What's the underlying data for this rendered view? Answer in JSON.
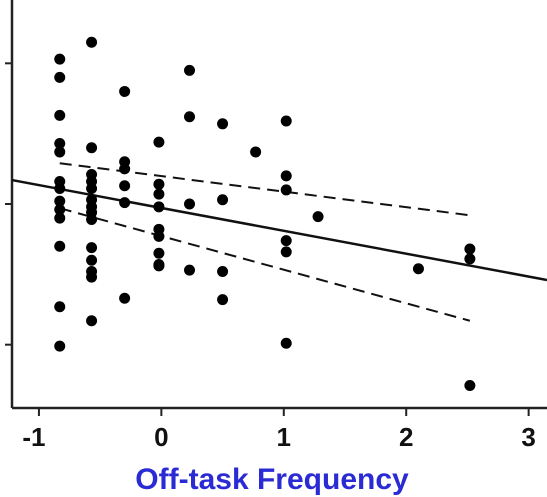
{
  "chart_data": {
    "type": "scatter",
    "xlabel": "Off-task Frequency",
    "xlabel_color": "#2b2bd6",
    "ylabel": "",
    "xlim": [
      -1.22,
      3.15
    ],
    "ylim": [
      -1.45,
      1.45
    ],
    "x_ticks": [
      -1,
      0,
      1,
      2,
      3
    ],
    "x_tick_labels": [
      "-1",
      "0",
      "1",
      "2",
      "3"
    ],
    "y_ticks": [
      -1,
      0,
      1
    ],
    "grid": false,
    "point_color": "#000000",
    "points": [
      {
        "x": -0.83,
        "y": 1.03
      },
      {
        "x": -0.83,
        "y": 0.9
      },
      {
        "x": -0.83,
        "y": 0.63
      },
      {
        "x": -0.83,
        "y": 0.43
      },
      {
        "x": -0.83,
        "y": 0.37
      },
      {
        "x": -0.83,
        "y": 0.16
      },
      {
        "x": -0.83,
        "y": 0.11
      },
      {
        "x": -0.83,
        "y": 0.02
      },
      {
        "x": -0.83,
        "y": -0.04
      },
      {
        "x": -0.83,
        "y": -0.1
      },
      {
        "x": -0.83,
        "y": -0.3
      },
      {
        "x": -0.83,
        "y": -0.73
      },
      {
        "x": -0.83,
        "y": -1.01
      },
      {
        "x": -0.57,
        "y": 1.15
      },
      {
        "x": -0.57,
        "y": 0.4
      },
      {
        "x": -0.57,
        "y": 0.21
      },
      {
        "x": -0.57,
        "y": 0.16
      },
      {
        "x": -0.57,
        "y": 0.11
      },
      {
        "x": -0.57,
        "y": 0.03
      },
      {
        "x": -0.57,
        "y": -0.02
      },
      {
        "x": -0.57,
        "y": -0.06
      },
      {
        "x": -0.57,
        "y": -0.11
      },
      {
        "x": -0.57,
        "y": -0.31
      },
      {
        "x": -0.57,
        "y": -0.4
      },
      {
        "x": -0.57,
        "y": -0.48
      },
      {
        "x": -0.57,
        "y": -0.52
      },
      {
        "x": -0.57,
        "y": -0.83
      },
      {
        "x": -0.3,
        "y": 0.8
      },
      {
        "x": -0.3,
        "y": 0.3
      },
      {
        "x": -0.3,
        "y": 0.25
      },
      {
        "x": -0.3,
        "y": 0.13
      },
      {
        "x": -0.3,
        "y": 0.01
      },
      {
        "x": -0.3,
        "y": -0.67
      },
      {
        "x": -0.02,
        "y": 0.44
      },
      {
        "x": -0.02,
        "y": 0.14
      },
      {
        "x": -0.02,
        "y": 0.07
      },
      {
        "x": -0.02,
        "y": -0.02
      },
      {
        "x": -0.02,
        "y": -0.18
      },
      {
        "x": -0.02,
        "y": -0.23
      },
      {
        "x": -0.02,
        "y": -0.35
      },
      {
        "x": -0.02,
        "y": -0.43
      },
      {
        "x": -0.02,
        "y": -0.44
      },
      {
        "x": 0.23,
        "y": 0.95
      },
      {
        "x": 0.23,
        "y": 0.62
      },
      {
        "x": 0.23,
        "y": 0.0
      },
      {
        "x": 0.23,
        "y": -0.47
      },
      {
        "x": 0.5,
        "y": 0.57
      },
      {
        "x": 0.5,
        "y": 0.03
      },
      {
        "x": 0.5,
        "y": -0.48
      },
      {
        "x": 0.5,
        "y": -0.68
      },
      {
        "x": 0.77,
        "y": 0.37
      },
      {
        "x": 1.02,
        "y": 0.59
      },
      {
        "x": 1.02,
        "y": 0.2
      },
      {
        "x": 1.02,
        "y": 0.1
      },
      {
        "x": 1.02,
        "y": -0.26
      },
      {
        "x": 1.02,
        "y": -0.34
      },
      {
        "x": 1.02,
        "y": -0.99
      },
      {
        "x": 1.28,
        "y": -0.09
      },
      {
        "x": 2.1,
        "y": -0.46
      },
      {
        "x": 2.52,
        "y": -0.32
      },
      {
        "x": 2.52,
        "y": -0.39
      },
      {
        "x": 2.52,
        "y": -1.29
      }
    ],
    "series": [
      {
        "role": "regression",
        "style": "solid",
        "x": [
          -1.22,
          3.15
        ],
        "y": [
          0.17,
          -0.54
        ]
      },
      {
        "role": "ci-upper",
        "style": "dashed",
        "x": [
          -0.83,
          2.52
        ],
        "y": [
          0.29,
          -0.08
        ]
      },
      {
        "role": "ci-lower",
        "style": "dashed",
        "x": [
          -0.83,
          2.52
        ],
        "y": [
          -0.03,
          -0.83
        ]
      }
    ]
  }
}
